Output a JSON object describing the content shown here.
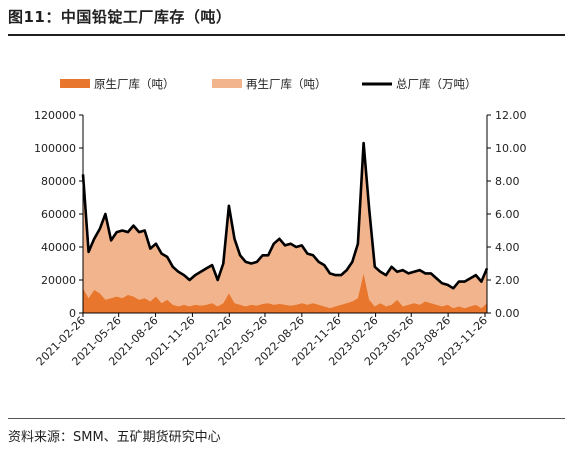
{
  "figure": {
    "title": "图11：中国铅锭工厂库存（吨）",
    "source": "资料来源：SMM、五矿期货研究中心"
  },
  "chart_data": {
    "type": "area",
    "legend": {
      "placement": "top",
      "entries": [
        "原生厂库（吨）",
        "再生厂库（吨）",
        "总厂库（万吨）"
      ]
    },
    "colors": {
      "primary": "#e8762c",
      "secondary": "#f2b48c",
      "total": "#000000"
    },
    "x_tick_labels": [
      "2021-02-26",
      "2021-05-26",
      "2021-08-26",
      "2021-11-26",
      "2022-02-26",
      "2022-05-26",
      "2022-08-26",
      "2022-11-26",
      "2023-02-26",
      "2023-05-26",
      "2023-08-26",
      "2023-11-26"
    ],
    "y_left": {
      "ylim": [
        0,
        120000
      ],
      "ticks": [
        "0",
        "20000",
        "40000",
        "60000",
        "80000",
        "100000",
        "120000"
      ]
    },
    "y_right": {
      "ylim": [
        0,
        12
      ],
      "ticks": [
        "0.00",
        "2.00",
        "4.00",
        "6.00",
        "8.00",
        "10.00",
        "12.00"
      ]
    },
    "x": [
      "2021-02-26",
      "2021-03-12",
      "2021-03-26",
      "2021-04-09",
      "2021-04-23",
      "2021-05-07",
      "2021-05-21",
      "2021-06-04",
      "2021-06-18",
      "2021-07-02",
      "2021-07-16",
      "2021-07-30",
      "2021-08-13",
      "2021-08-27",
      "2021-09-10",
      "2021-09-24",
      "2021-10-08",
      "2021-10-22",
      "2021-11-05",
      "2021-11-19",
      "2021-12-03",
      "2021-12-17",
      "2021-12-31",
      "2022-01-14",
      "2022-01-28",
      "2022-02-11",
      "2022-02-25",
      "2022-03-11",
      "2022-03-25",
      "2022-04-08",
      "2022-04-22",
      "2022-05-06",
      "2022-05-20",
      "2022-06-03",
      "2022-06-17",
      "2022-07-01",
      "2022-07-15",
      "2022-07-29",
      "2022-08-12",
      "2022-08-26",
      "2022-09-09",
      "2022-09-23",
      "2022-10-07",
      "2022-10-21",
      "2022-11-04",
      "2022-11-18",
      "2022-12-02",
      "2022-12-16",
      "2022-12-30",
      "2023-01-13",
      "2023-01-27",
      "2023-02-10",
      "2023-02-24",
      "2023-03-10",
      "2023-03-24",
      "2023-04-07",
      "2023-04-21",
      "2023-05-05",
      "2023-05-19",
      "2023-06-02",
      "2023-06-16",
      "2023-06-30",
      "2023-07-14",
      "2023-07-28",
      "2023-08-11",
      "2023-08-25",
      "2023-09-08",
      "2023-09-22",
      "2023-10-06",
      "2023-10-20",
      "2023-11-03",
      "2023-11-17",
      "2023-12-01"
    ],
    "series": [
      {
        "name": "原生厂库（吨）",
        "axis": "left",
        "values": [
          15000,
          9000,
          14000,
          12000,
          8000,
          9000,
          10000,
          9000,
          11000,
          10000,
          8000,
          9000,
          7000,
          10000,
          6000,
          8000,
          5000,
          4000,
          5000,
          4000,
          5000,
          4500,
          5000,
          6000,
          4000,
          6000,
          12000,
          6000,
          5000,
          4000,
          5000,
          4500,
          5500,
          6000,
          5000,
          5500,
          5000,
          4500,
          5000,
          6000,
          5000,
          6000,
          5000,
          4000,
          3000,
          4000,
          5000,
          6000,
          7000,
          9000,
          24000,
          8000,
          4000,
          6000,
          4000,
          5000,
          8000,
          4000,
          5000,
          6000,
          5000,
          7000,
          6000,
          5000,
          4000,
          5000,
          3000,
          4000,
          3000,
          4000,
          5000,
          3000,
          6000
        ]
      },
      {
        "name": "再生厂库（吨）",
        "axis": "left",
        "values": [
          69000,
          28000,
          31000,
          39000,
          52000,
          35000,
          39000,
          41000,
          38000,
          43000,
          41000,
          41000,
          32000,
          32000,
          30000,
          26000,
          23000,
          21000,
          18000,
          16000,
          18000,
          20500,
          22000,
          23000,
          16000,
          24000,
          53000,
          39000,
          30000,
          27000,
          25000,
          26500,
          29500,
          29000,
          37000,
          39500,
          36000,
          37500,
          35000,
          35000,
          31000,
          29000,
          26000,
          25000,
          21000,
          19000,
          18000,
          20000,
          24000,
          33000,
          79000,
          55000,
          24000,
          19000,
          19000,
          23000,
          17000,
          22000,
          19000,
          19000,
          21000,
          17000,
          18000,
          16000,
          14000,
          12000,
          12000,
          15000,
          16000,
          17000,
          18000,
          16000,
          21000
        ]
      },
      {
        "name": "总厂库（万吨）",
        "axis": "right",
        "values": [
          8.4,
          3.7,
          4.5,
          5.1,
          6.0,
          4.4,
          4.9,
          5.0,
          4.9,
          5.3,
          4.9,
          5.0,
          3.9,
          4.2,
          3.6,
          3.4,
          2.8,
          2.5,
          2.3,
          2.0,
          2.3,
          2.5,
          2.7,
          2.9,
          2.0,
          3.0,
          6.5,
          4.5,
          3.5,
          3.1,
          3.0,
          3.1,
          3.5,
          3.5,
          4.2,
          4.5,
          4.1,
          4.2,
          4.0,
          4.1,
          3.6,
          3.5,
          3.1,
          2.9,
          2.4,
          2.3,
          2.3,
          2.6,
          3.1,
          4.2,
          10.3,
          6.3,
          2.8,
          2.5,
          2.3,
          2.8,
          2.5,
          2.6,
          2.4,
          2.5,
          2.6,
          2.4,
          2.4,
          2.1,
          1.8,
          1.7,
          1.5,
          1.9,
          1.9,
          2.1,
          2.3,
          1.9,
          2.7
        ]
      }
    ]
  }
}
